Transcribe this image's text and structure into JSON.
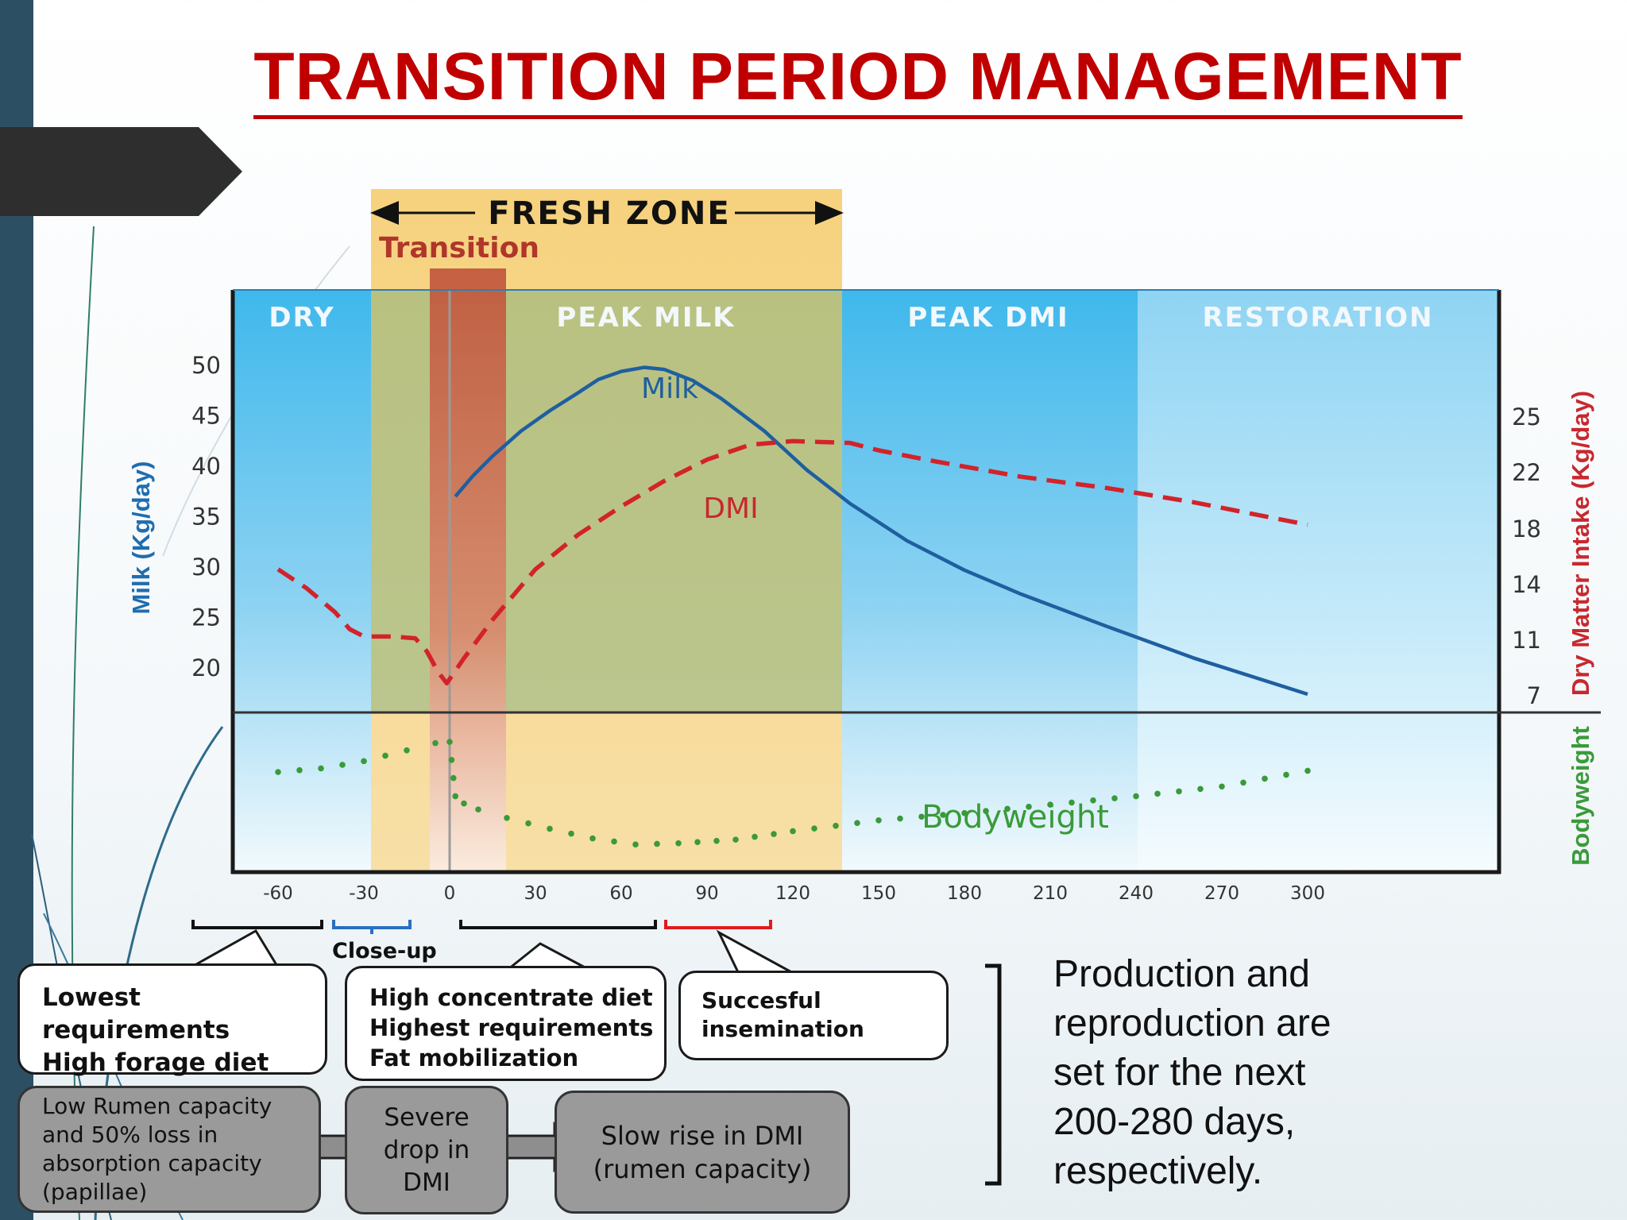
{
  "title": "TRANSITION PERIOD MANAGEMENT",
  "colors": {
    "title": "#c00000",
    "milk": "#1f5fa0",
    "dmi": "#d2232a",
    "bodyweight": "#3a9a3a",
    "fresh_zone": "#f5d27a",
    "transition": "#c0533a",
    "blue_zone": "#58c4ef",
    "restoration": "#a8ddf5"
  },
  "chart_data": {
    "type": "line",
    "header_labels": {
      "fresh_zone": "FRESH ZONE",
      "transition": "Transition"
    },
    "zones": [
      "DRY",
      "PEAK MILK",
      "PEAK DMI",
      "RESTORATION"
    ],
    "x_ticks": [
      -60,
      -30,
      0,
      30,
      60,
      90,
      120,
      150,
      180,
      210,
      240,
      270,
      300
    ],
    "y_left_ticks": [
      50,
      45,
      40,
      35,
      30,
      25,
      20
    ],
    "y_left_label": "Milk (Kg/day)",
    "y_right_ticks": [
      25,
      22,
      18,
      14,
      11,
      7
    ],
    "y_right_label": "Dry Matter Intake (Kg/day)",
    "y_lower_label": "Bodyweight",
    "series": [
      {
        "name": "Milk",
        "axis": "left",
        "style": "solid",
        "x": [
          2,
          8,
          15,
          25,
          35,
          45,
          52,
          60,
          68,
          75,
          85,
          95,
          110,
          125,
          140,
          160,
          180,
          200,
          230,
          260,
          300
        ],
        "y": [
          37,
          39,
          41,
          43.5,
          45.5,
          47.3,
          48.6,
          49.4,
          49.8,
          49.6,
          48.5,
          46.7,
          43.5,
          39.6,
          36.3,
          32.6,
          29.7,
          27.3,
          24.1,
          21.0,
          17.4
        ]
      },
      {
        "name": "DMI",
        "axis": "right",
        "style": "dashed",
        "x": [
          -60,
          -50,
          -40,
          -35,
          -30,
          -25,
          -20,
          -12,
          -8,
          -4,
          -1,
          1,
          5,
          15,
          30,
          45,
          60,
          75,
          90,
          105,
          120,
          140,
          150,
          170,
          200,
          230,
          260,
          300
        ],
        "y": [
          15.1,
          13.8,
          12.5,
          11.6,
          11.2,
          11.2,
          11.2,
          11.1,
          10.2,
          8.7,
          7.9,
          8.5,
          9.7,
          12.1,
          15.1,
          17.6,
          19.6,
          21.4,
          22.7,
          23.5,
          23.7,
          23.6,
          23.2,
          22.6,
          21.7,
          20.9,
          19.9,
          18.3
        ]
      },
      {
        "name": "Bodyweight",
        "axis": "lower",
        "style": "dotted",
        "x": [
          -60,
          -45,
          -30,
          -15,
          -5,
          0,
          2,
          5,
          10,
          20,
          35,
          50,
          65,
          80,
          100,
          120,
          150,
          180,
          210,
          240,
          270,
          300
        ],
        "y": [
          0.75,
          0.78,
          0.84,
          0.93,
          0.99,
          1.0,
          0.55,
          0.49,
          0.44,
          0.37,
          0.28,
          0.2,
          0.15,
          0.16,
          0.19,
          0.26,
          0.35,
          0.41,
          0.48,
          0.55,
          0.63,
          0.76
        ]
      }
    ]
  },
  "close_up_label": "Close-up",
  "callouts": [
    {
      "lines": [
        "Lowest",
        "requirements",
        "High forage diet"
      ]
    },
    {
      "lines": [
        "High concentrate diet",
        "Highest requirements",
        "Fat mobilization"
      ]
    },
    {
      "lines": [
        "Succesful",
        "insemination"
      ]
    }
  ],
  "flow_boxes": [
    {
      "lines": [
        "Low Rumen capacity",
        "and 50% loss in",
        "absorption capacity",
        "(papillae)"
      ]
    },
    {
      "lines": [
        "Severe",
        "drop in",
        "DMI"
      ]
    },
    {
      "lines": [
        "Slow rise in DMI",
        "(rumen capacity)"
      ]
    }
  ],
  "summary_lines": [
    "Production and",
    "reproduction are",
    "set for the next",
    "200-280 days,",
    "respectively."
  ]
}
